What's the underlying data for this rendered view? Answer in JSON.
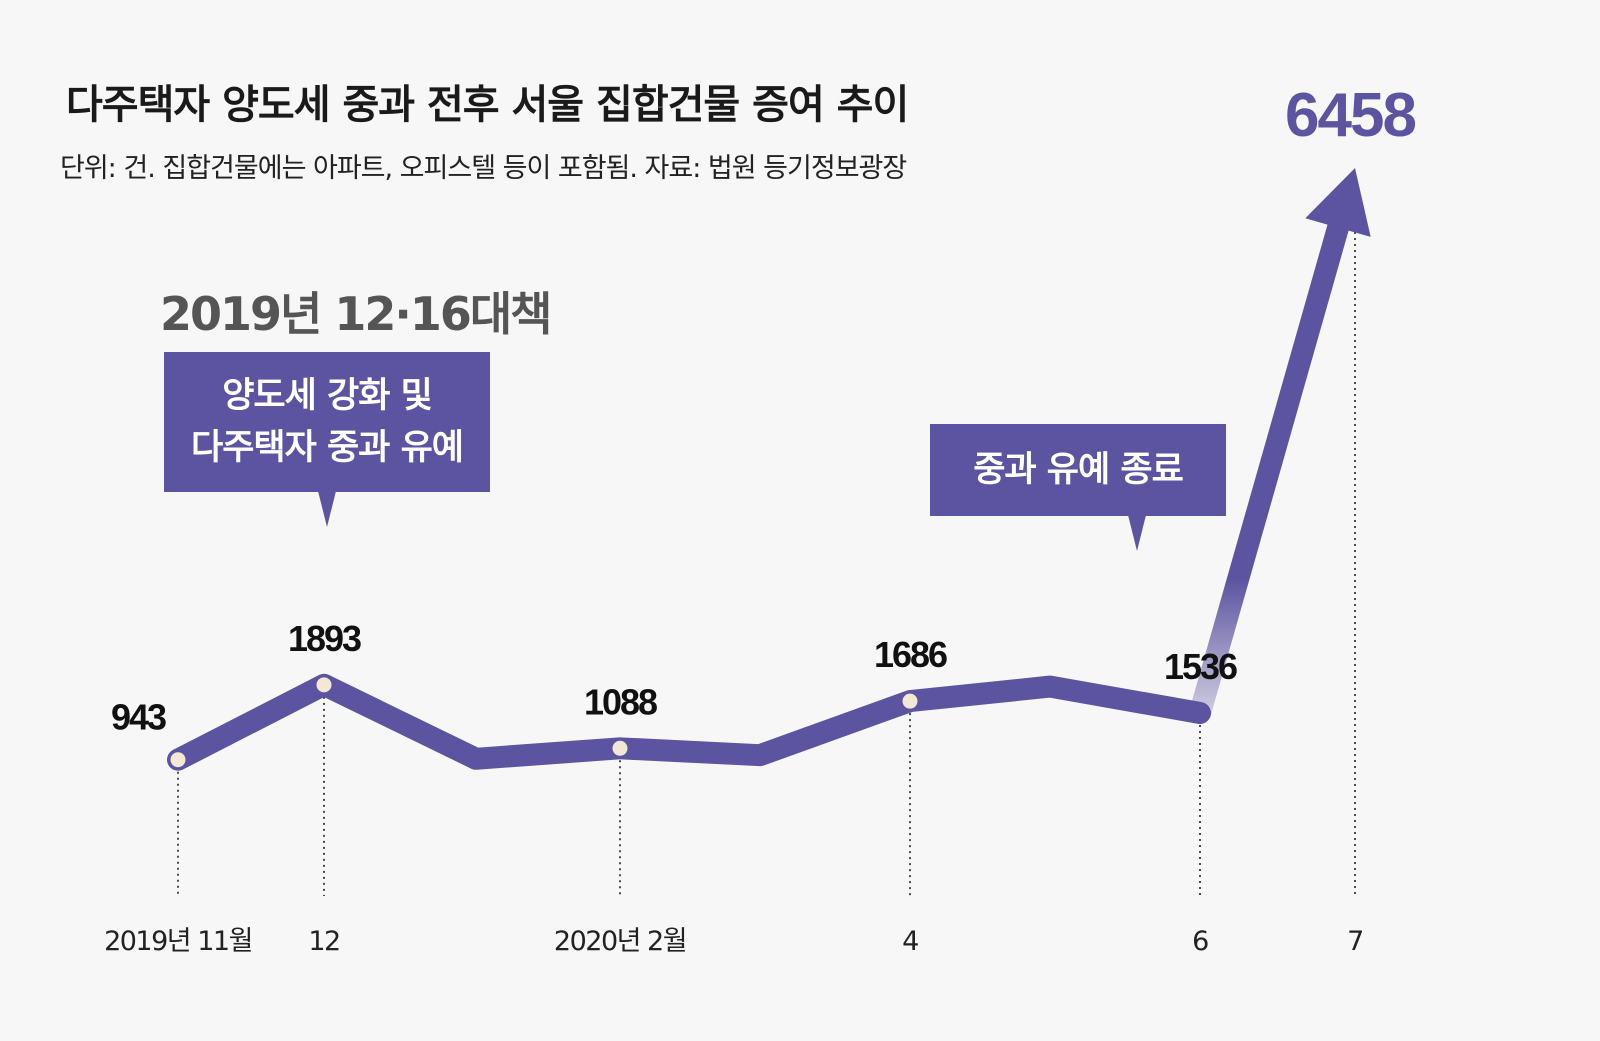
{
  "header": {
    "title": "다주택자 양도세 중과 전후 서울 집합건물 증여 추이",
    "subtitle": "단위: 건. 집합건물에는 아파트, 오피스텔 등이 포함됨. 자료: 법원 등기정보광장"
  },
  "annotations": {
    "policy_title": "2019년 12·16대책",
    "callout_left_line1": "양도세 강화 및",
    "callout_left_line2": "다주택자 중과 유예",
    "callout_right": "중과 유예 종료"
  },
  "colors": {
    "accent": "#5c54a0",
    "marker_fill": "#f3e8d3",
    "text": "#111111",
    "background": "#f7f7f7"
  },
  "chart_data": {
    "type": "line",
    "title": "다주택자 양도세 중과 전후 서울 집합건물 증여 추이",
    "xlabel": "",
    "ylabel": "건",
    "categories": [
      "2019-11",
      "2019-12",
      "2020-01",
      "2020-02",
      "2020-03",
      "2020-04",
      "2020-05",
      "2020-06",
      "2020-07"
    ],
    "values": [
      943,
      1893,
      954,
      1088,
      1000,
      1686,
      1870,
      1536,
      6458
    ],
    "ylim": [
      0,
      6600
    ],
    "labeled": [
      {
        "index": 0,
        "text": "943"
      },
      {
        "index": 1,
        "text": "1893"
      },
      {
        "index": 3,
        "text": "1088"
      },
      {
        "index": 5,
        "text": "1686"
      },
      {
        "index": 7,
        "text": "1536"
      },
      {
        "index": 8,
        "text": "6458"
      }
    ],
    "markers": [
      0,
      1,
      3,
      5
    ],
    "arrow_index": 8,
    "tick_labels": [
      {
        "index": 0,
        "text": "2019년 11월"
      },
      {
        "index": 1,
        "text": "12"
      },
      {
        "index": 3,
        "text": "2020년 2월"
      },
      {
        "index": 5,
        "text": "4"
      },
      {
        "index": 7,
        "text": "6"
      },
      {
        "index": 8,
        "text": "7"
      }
    ],
    "grid": false,
    "legend": "none"
  }
}
